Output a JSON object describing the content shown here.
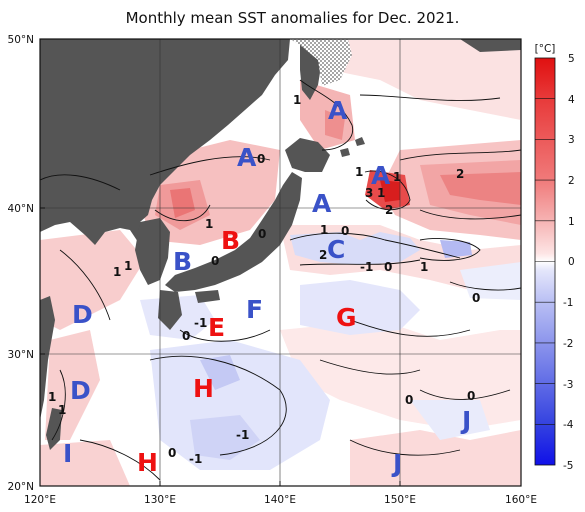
{
  "title": "Monthly mean SST anomalies for Dec. 2021.",
  "axes": {
    "lat_labels": [
      "50°N",
      "40°N",
      "30°N",
      "20°N"
    ],
    "lon_labels": [
      "120°E",
      "130°E",
      "140°E",
      "150°E",
      "160°E"
    ]
  },
  "colorbar": {
    "unit": "[°C]",
    "ticks": [
      "5",
      "4",
      "3",
      "2",
      "1",
      "0",
      "-1",
      "-2",
      "-3",
      "-4",
      "-5"
    ]
  },
  "colors": {
    "land": "#555555",
    "sea_ice_hatch": "#bbbbbb",
    "warm_region_label": "#ee1111",
    "cool_region_label": "#3a52c8"
  },
  "regions": [
    {
      "label": "A",
      "type": "cool"
    },
    {
      "label": "A",
      "type": "cool"
    },
    {
      "label": "A",
      "type": "cool"
    },
    {
      "label": "A",
      "type": "cool"
    },
    {
      "label": "B",
      "type": "cool"
    },
    {
      "label": "B",
      "type": "warm"
    },
    {
      "label": "C",
      "type": "cool"
    },
    {
      "label": "D",
      "type": "cool"
    },
    {
      "label": "D",
      "type": "cool"
    },
    {
      "label": "E",
      "type": "warm"
    },
    {
      "label": "F",
      "type": "cool"
    },
    {
      "label": "G",
      "type": "warm"
    },
    {
      "label": "H",
      "type": "warm"
    },
    {
      "label": "H",
      "type": "warm"
    },
    {
      "label": "I",
      "type": "cool"
    },
    {
      "label": "J",
      "type": "cool"
    },
    {
      "label": "J",
      "type": "cool"
    }
  ],
  "contour_labels": [
    "1",
    "0",
    "1",
    "1",
    "3",
    "1",
    "2",
    "2",
    "1",
    "0",
    "1",
    "0",
    "0",
    "2",
    "-1",
    "1",
    "0",
    "-1",
    "0",
    "0",
    "1",
    "1",
    "0",
    "0",
    "-1",
    "-1",
    "0",
    "1",
    "1"
  ]
}
